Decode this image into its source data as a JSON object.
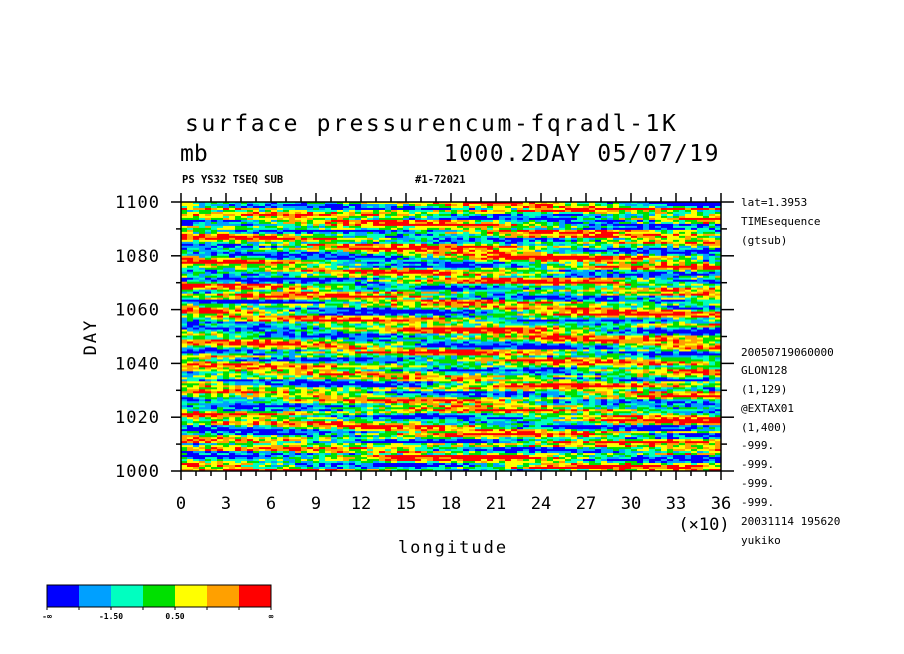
{
  "header": {
    "title_line1": "surface pressurencum-fqradl-1K",
    "unit": "mb",
    "title_right": "1000.2DAY 05/07/19",
    "subtitle_left": "PS YS32 TSEQ SUB",
    "subtitle_right": "#1-72021"
  },
  "side_info": {
    "top": [
      "lat=1.3953",
      "TIMEsequence",
      "(gtsub)"
    ],
    "bottom": [
      "20050719060000",
      "GLON128",
      "(1,129)",
      "@EXTAX01",
      "(1,400)",
      "-999.",
      "-999.",
      "-999.",
      "-999.",
      "20031114 195620",
      "yukiko"
    ]
  },
  "chart_data": {
    "type": "heatmap",
    "title": "surface pressurencum-fqradl-1K",
    "xlabel": "longitude",
    "x_multiplier": "(×10)",
    "ylabel": "DAY",
    "xlim": [
      0,
      36
    ],
    "ylim": [
      1000,
      1100
    ],
    "x_ticks": [
      "0",
      "3",
      "6",
      "9",
      "12",
      "15",
      "18",
      "21",
      "24",
      "27",
      "30",
      "33",
      "36"
    ],
    "y_ticks": [
      "1000",
      "1020",
      "1040",
      "1060",
      "1080",
      "1100"
    ],
    "y_tick_values": [
      1000,
      1020,
      1040,
      1060,
      1080,
      1100
    ],
    "colorbar": {
      "colors": [
        "#0000ff",
        "#00a0ff",
        "#00ffc0",
        "#00e000",
        "#ffff00",
        "#ffa000",
        "#ff0000"
      ],
      "labels": [
        "-∞",
        "-1.50",
        "0.50",
        "∞"
      ]
    }
  }
}
